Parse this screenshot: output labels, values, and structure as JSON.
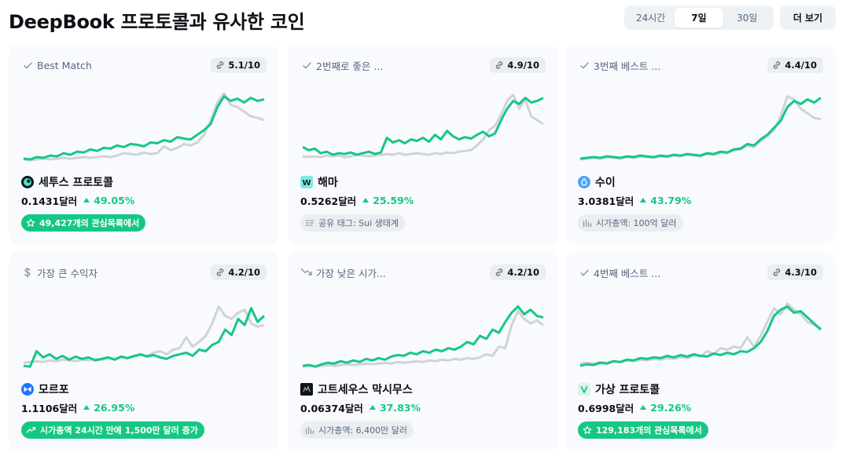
{
  "header": {
    "title": "DeepBook 프로토콜과 유사한 코인",
    "ranges": [
      "24시간",
      "7일",
      "30일"
    ],
    "active_range": "7일",
    "more_label": "더 보기"
  },
  "colors": {
    "green": "#16c784",
    "grey_line": "#cfd3d9"
  },
  "cards": [
    {
      "reason_icon": "check-icon",
      "reason": "Best Match",
      "score": "5.1/10",
      "coin_icon": "cetus-logo-icon",
      "name": "세투스 프로토콜",
      "price": "0.1431달러",
      "change": "49.05%",
      "tag_style": "green",
      "tag_icon": "star-icon",
      "tag": "49,427개의 관심목록에서",
      "green_line": [
        0.05,
        0.04,
        0.07,
        0.06,
        0.09,
        0.08,
        0.12,
        0.1,
        0.14,
        0.13,
        0.17,
        0.15,
        0.19,
        0.18,
        0.22,
        0.2,
        0.24,
        0.23,
        0.21,
        0.26,
        0.25,
        0.29,
        0.27,
        0.33,
        0.31,
        0.3,
        0.36,
        0.42,
        0.5,
        0.72,
        0.86,
        0.8,
        0.83,
        0.78,
        0.84,
        0.8,
        0.82
      ],
      "grey_line": [
        0.04,
        0.03,
        0.04,
        0.05,
        0.04,
        0.05,
        0.06,
        0.05,
        0.06,
        0.07,
        0.06,
        0.07,
        0.08,
        0.07,
        0.09,
        0.12,
        0.11,
        0.1,
        0.13,
        0.11,
        0.12,
        0.21,
        0.16,
        0.19,
        0.24,
        0.22,
        0.26,
        0.36,
        0.55,
        0.78,
        0.9,
        0.75,
        0.72,
        0.66,
        0.6,
        0.58,
        0.55
      ]
    },
    {
      "reason_icon": "check-icon",
      "reason": "2번째로 좋은 ...",
      "score": "4.9/10",
      "coin_icon": "wormhole-logo-icon",
      "name": "해마",
      "price": "0.5262달러",
      "change": "25.59%",
      "tag_style": "grey",
      "tag_icon": "tag-list-icon",
      "tag": "공유 태그: Sui 생태계",
      "green_line": [
        0.2,
        0.16,
        0.18,
        0.12,
        0.14,
        0.1,
        0.12,
        0.11,
        0.13,
        0.1,
        0.12,
        0.14,
        0.11,
        0.13,
        0.32,
        0.26,
        0.29,
        0.25,
        0.3,
        0.28,
        0.32,
        0.27,
        0.36,
        0.3,
        0.41,
        0.34,
        0.3,
        0.33,
        0.31,
        0.36,
        0.4,
        0.34,
        0.38,
        0.55,
        0.7,
        0.8,
        0.76,
        0.84,
        0.78,
        0.8,
        0.84
      ],
      "grey_line": [
        0.08,
        0.07,
        0.08,
        0.07,
        0.09,
        0.08,
        0.09,
        0.07,
        0.08,
        0.1,
        0.09,
        0.08,
        0.09,
        0.1,
        0.11,
        0.1,
        0.12,
        0.1,
        0.11,
        0.12,
        0.11,
        0.1,
        0.12,
        0.11,
        0.13,
        0.12,
        0.14,
        0.15,
        0.16,
        0.22,
        0.3,
        0.42,
        0.48,
        0.62,
        0.8,
        0.88,
        0.7,
        0.82,
        0.6,
        0.55,
        0.5
      ]
    },
    {
      "reason_icon": "check-icon",
      "reason": "3번째 베스트 ...",
      "score": "4.4/10",
      "coin_icon": "sui-logo-icon",
      "name": "수이",
      "price": "3.0381달러",
      "change": "43.79%",
      "tag_style": "grey",
      "tag_icon": "chart-icon",
      "tag": "시가총액: 100억 달러",
      "green_line": [
        0.05,
        0.06,
        0.07,
        0.06,
        0.08,
        0.07,
        0.06,
        0.08,
        0.07,
        0.09,
        0.08,
        0.07,
        0.09,
        0.08,
        0.1,
        0.09,
        0.11,
        0.1,
        0.09,
        0.12,
        0.11,
        0.14,
        0.13,
        0.17,
        0.18,
        0.24,
        0.22,
        0.3,
        0.36,
        0.45,
        0.54,
        0.72,
        0.8,
        0.76,
        0.82,
        0.78,
        0.84
      ],
      "grey_line": [
        0.04,
        0.05,
        0.06,
        0.05,
        0.07,
        0.06,
        0.05,
        0.07,
        0.06,
        0.08,
        0.07,
        0.06,
        0.08,
        0.07,
        0.09,
        0.08,
        0.1,
        0.09,
        0.08,
        0.11,
        0.1,
        0.13,
        0.12,
        0.16,
        0.17,
        0.22,
        0.2,
        0.28,
        0.34,
        0.42,
        0.6,
        0.86,
        0.82,
        0.7,
        0.64,
        0.58,
        0.56
      ]
    },
    {
      "reason_icon": "dollar-icon",
      "reason": "가장 큰 수익자",
      "score": "4.2/10",
      "coin_icon": "momentum-logo-icon",
      "name": "모르포",
      "price": "1.1106달러",
      "change": "26.95%",
      "tag_style": "green",
      "tag_icon": "trend-up-icon",
      "tag": "시가총액 24시간 만에 1,500만 달러 증가",
      "green_line": [
        0.05,
        0.04,
        0.24,
        0.16,
        0.2,
        0.14,
        0.18,
        0.13,
        0.17,
        0.14,
        0.16,
        0.12,
        0.14,
        0.16,
        0.13,
        0.17,
        0.15,
        0.18,
        0.2,
        0.17,
        0.19,
        0.16,
        0.14,
        0.18,
        0.2,
        0.22,
        0.18,
        0.26,
        0.24,
        0.32,
        0.36,
        0.52,
        0.45,
        0.66,
        0.58,
        0.8,
        0.62,
        0.7
      ],
      "grey_line": [
        0.09,
        0.1,
        0.11,
        0.1,
        0.12,
        0.11,
        0.13,
        0.12,
        0.11,
        0.13,
        0.12,
        0.14,
        0.13,
        0.15,
        0.14,
        0.16,
        0.15,
        0.17,
        0.19,
        0.18,
        0.22,
        0.24,
        0.2,
        0.26,
        0.28,
        0.42,
        0.3,
        0.36,
        0.44,
        0.6,
        0.82,
        0.7,
        0.66,
        0.74,
        0.78,
        0.6,
        0.56,
        0.58
      ]
    },
    {
      "reason_icon": "trend-down-icon",
      "reason": "가장 낮은 시가...",
      "score": "4.2/10",
      "coin_icon": "gotonexus-logo-icon",
      "name": "고트세우스 막시무스",
      "price": "0.06374달러",
      "change": "37.83%",
      "tag_style": "grey",
      "tag_icon": "chart-icon",
      "tag": "시가총액: 6,400만 달러",
      "green_line": [
        0.05,
        0.06,
        0.04,
        0.07,
        0.09,
        0.08,
        0.11,
        0.09,
        0.12,
        0.1,
        0.14,
        0.12,
        0.15,
        0.13,
        0.17,
        0.19,
        0.18,
        0.22,
        0.2,
        0.24,
        0.22,
        0.26,
        0.24,
        0.28,
        0.26,
        0.3,
        0.36,
        0.33,
        0.44,
        0.4,
        0.52,
        0.48,
        0.62,
        0.74,
        0.82,
        0.72,
        0.78,
        0.7,
        0.68
      ],
      "grey_line": [
        0.04,
        0.05,
        0.04,
        0.05,
        0.06,
        0.05,
        0.06,
        0.07,
        0.06,
        0.07,
        0.08,
        0.07,
        0.08,
        0.09,
        0.08,
        0.1,
        0.09,
        0.1,
        0.11,
        0.1,
        0.12,
        0.11,
        0.13,
        0.12,
        0.14,
        0.13,
        0.15,
        0.14,
        0.16,
        0.2,
        0.18,
        0.3,
        0.28,
        0.58,
        0.76,
        0.66,
        0.6,
        0.64,
        0.58
      ]
    },
    {
      "reason_icon": "check-icon",
      "reason": "4번째 베스트 ...",
      "score": "4.3/10",
      "coin_icon": "virtual-logo-icon",
      "name": "가상 프로토콜",
      "price": "0.6998달러",
      "change": "29.26%",
      "tag_style": "green",
      "tag_icon": "star-icon",
      "tag": "129,183개의 관심목록에서",
      "green_line": [
        0.05,
        0.07,
        0.06,
        0.09,
        0.08,
        0.11,
        0.1,
        0.13,
        0.12,
        0.15,
        0.14,
        0.16,
        0.15,
        0.18,
        0.16,
        0.19,
        0.17,
        0.2,
        0.18,
        0.17,
        0.21,
        0.19,
        0.22,
        0.2,
        0.24,
        0.23,
        0.28,
        0.36,
        0.5,
        0.7,
        0.78,
        0.82,
        0.74,
        0.76,
        0.68,
        0.6,
        0.52
      ],
      "grey_line": [
        0.08,
        0.09,
        0.08,
        0.1,
        0.09,
        0.11,
        0.1,
        0.12,
        0.11,
        0.13,
        0.12,
        0.14,
        0.13,
        0.15,
        0.14,
        0.16,
        0.15,
        0.18,
        0.17,
        0.24,
        0.2,
        0.28,
        0.26,
        0.3,
        0.28,
        0.42,
        0.3,
        0.44,
        0.62,
        0.8,
        0.72,
        0.86,
        0.78,
        0.72,
        0.62,
        0.58,
        0.54
      ]
    }
  ]
}
